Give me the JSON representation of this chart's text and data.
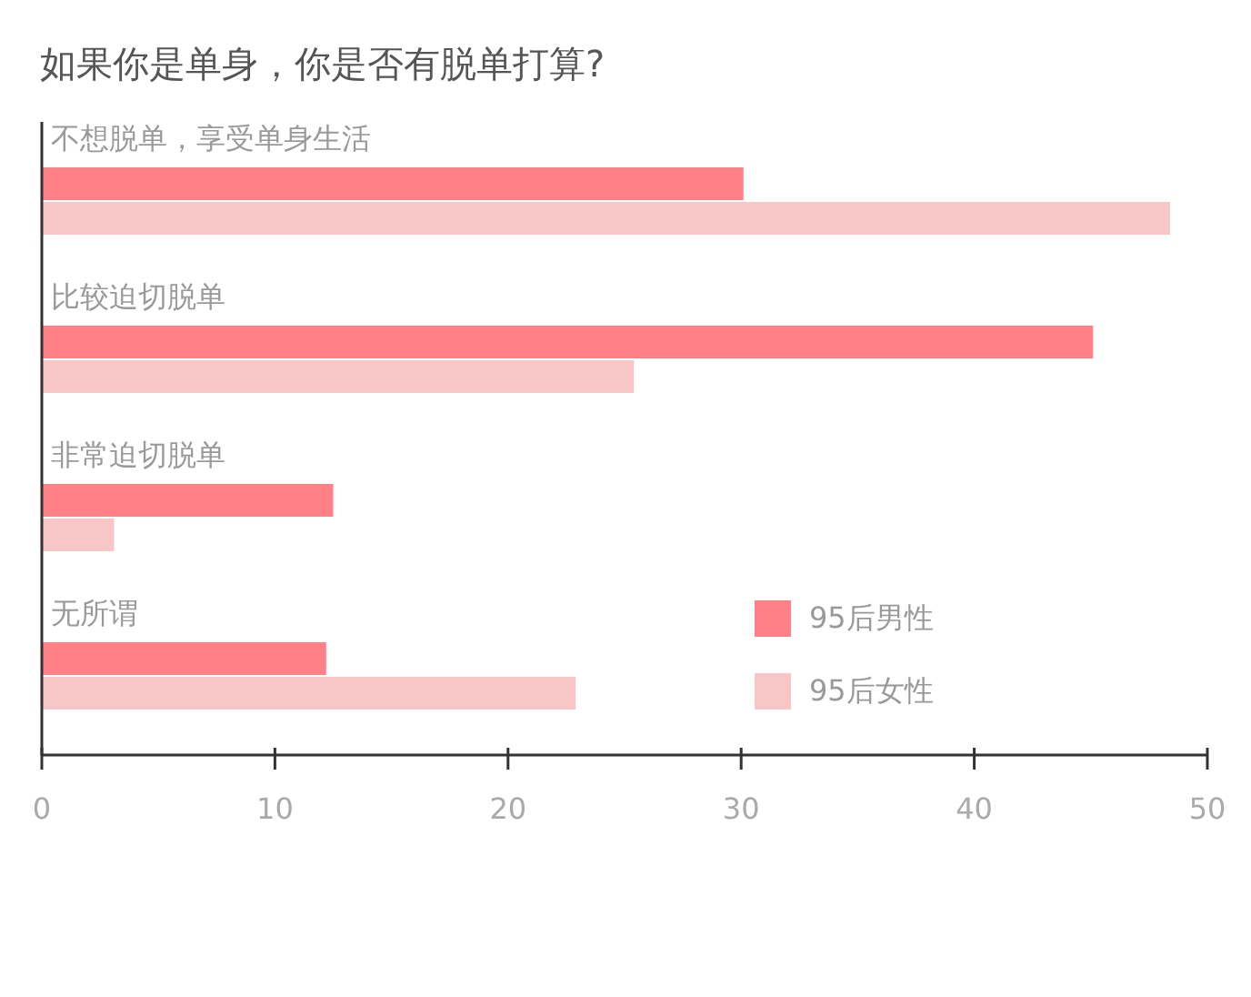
{
  "chart_data": {
    "type": "bar",
    "orientation": "horizontal",
    "title": "如果你是单身，你是否有脱单打算?",
    "categories": [
      "不想脱单，享受单身生活",
      "比较迫切脱单",
      "非常迫切脱单",
      "无所谓"
    ],
    "series": [
      {
        "name": "95后男性",
        "color": "#ff8087",
        "values": [
          30.1,
          45.1,
          12.5,
          12.2
        ]
      },
      {
        "name": "95后女性",
        "color": "#f9c6c7",
        "values": [
          48.4,
          25.4,
          3.1,
          22.9
        ]
      }
    ],
    "xlim": [
      0,
      50
    ],
    "xticks": [
      0,
      10,
      20,
      30,
      40,
      50
    ],
    "grid": false,
    "legend": "right"
  }
}
